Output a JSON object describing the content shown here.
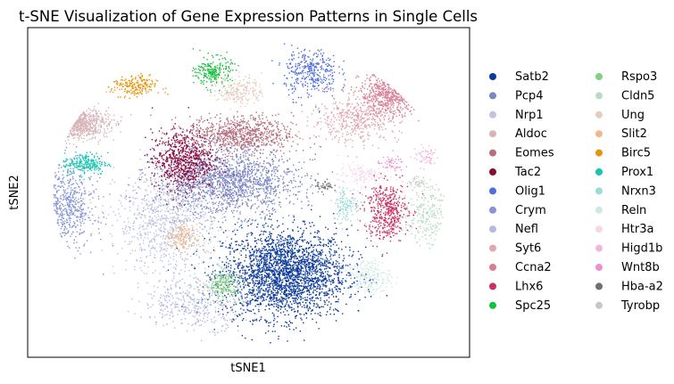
{
  "chart_data": {
    "type": "scatter",
    "title": "t-SNE Visualization of Gene Expression Patterns in Single Cells",
    "xlabel": "tSNE1",
    "ylabel": "tSNE2",
    "xlim": [
      -50,
      50
    ],
    "ylim": [
      -45,
      45
    ],
    "grid": false,
    "legend_placement": "right, two columns",
    "series": [
      {
        "name": "Satb2",
        "color": "#0b3a9a",
        "center": [
          8,
          -22
        ],
        "spread": [
          14,
          12
        ],
        "n": 2600
      },
      {
        "name": "Pcp4",
        "color": "#7c86c4",
        "center": [
          -5,
          3
        ],
        "spread": [
          16,
          9
        ],
        "n": 1700
      },
      {
        "name": "Nrp1",
        "color": "#bfc2e0",
        "center": [
          -18,
          -8
        ],
        "spread": [
          12,
          14
        ],
        "n": 900
      },
      {
        "name": "Aldoc",
        "color": "#d6b4b8",
        "center": [
          -40,
          19
        ],
        "spread": [
          8,
          4
        ],
        "n": 500
      },
      {
        "name": "Eomes",
        "color": "#b46e7e",
        "center": [
          -2,
          16
        ],
        "spread": [
          12,
          5
        ],
        "n": 800
      },
      {
        "name": "Tac2",
        "color": "#8b0a3c",
        "center": [
          -15,
          9
        ],
        "spread": [
          7,
          8
        ],
        "n": 700
      },
      {
        "name": "Olig1",
        "color": "#4f6fdb",
        "center": [
          14,
          33
        ],
        "spread": [
          6,
          7
        ],
        "n": 350
      },
      {
        "name": "Crym",
        "color": "#8794d7",
        "center": [
          -42,
          -4
        ],
        "spread": [
          7,
          12
        ],
        "n": 500
      },
      {
        "name": "Nefl",
        "color": "#b5b9e3",
        "center": [
          -12,
          -30
        ],
        "spread": [
          12,
          7
        ],
        "n": 400
      },
      {
        "name": "Syt6",
        "color": "#e2a6b2",
        "center": [
          24,
          20
        ],
        "spread": [
          10,
          6
        ],
        "n": 450
      },
      {
        "name": "Ccna2",
        "color": "#d97e95",
        "center": [
          32,
          27
        ],
        "spread": [
          7,
          6
        ],
        "n": 450
      },
      {
        "name": "Lhx6",
        "color": "#c9305e",
        "center": [
          31,
          -5
        ],
        "spread": [
          5,
          8
        ],
        "n": 450
      },
      {
        "name": "Spc25",
        "color": "#15c03a",
        "center": [
          -8,
          33
        ],
        "spread": [
          4,
          4
        ],
        "n": 220
      },
      {
        "name": "Rspo3",
        "color": "#84cf86",
        "center": [
          -6,
          -25
        ],
        "spread": [
          4,
          4
        ],
        "n": 200
      },
      {
        "name": "Cldn5",
        "color": "#b8dcc2",
        "center": [
          40,
          -6
        ],
        "spread": [
          5,
          8
        ],
        "n": 220
      },
      {
        "name": "Ung",
        "color": "#e6cbbf",
        "center": [
          -2,
          28
        ],
        "spread": [
          5,
          4
        ],
        "n": 200
      },
      {
        "name": "Slit2",
        "color": "#efb98c",
        "center": [
          -15,
          -12
        ],
        "spread": [
          4,
          4
        ],
        "n": 150
      },
      {
        "name": "Birc5",
        "color": "#e8930b",
        "center": [
          -26,
          29
        ],
        "spread": [
          5,
          3
        ],
        "n": 200
      },
      {
        "name": "Prox1",
        "color": "#12c6b2",
        "center": [
          -37,
          8
        ],
        "spread": [
          5,
          3
        ],
        "n": 220
      },
      {
        "name": "Nrxn3",
        "color": "#9adad7",
        "center": [
          22,
          -3
        ],
        "spread": [
          3,
          5
        ],
        "n": 120
      },
      {
        "name": "Reln",
        "color": "#cce9e3",
        "center": [
          27,
          -23
        ],
        "spread": [
          5,
          5
        ],
        "n": 200
      },
      {
        "name": "Htr3a",
        "color": "#f4d7e8",
        "center": [
          25,
          5
        ],
        "spread": [
          5,
          3
        ],
        "n": 120
      },
      {
        "name": "Higd1b",
        "color": "#f2b7d8",
        "center": [
          40,
          10
        ],
        "spread": [
          3,
          3
        ],
        "n": 60
      },
      {
        "name": "Wnt8b",
        "color": "#ea8fd0",
        "center": [
          32,
          8
        ],
        "spread": [
          3,
          2
        ],
        "n": 50
      },
      {
        "name": "Hba-a2",
        "color": "#6f6f6f",
        "center": [
          17,
          2
        ],
        "spread": [
          2,
          1.5
        ],
        "n": 40
      },
      {
        "name": "Tyrobp",
        "color": "#c8c8c8",
        "center": [
          38,
          3
        ],
        "spread": [
          2,
          1.5
        ],
        "n": 40
      }
    ]
  }
}
